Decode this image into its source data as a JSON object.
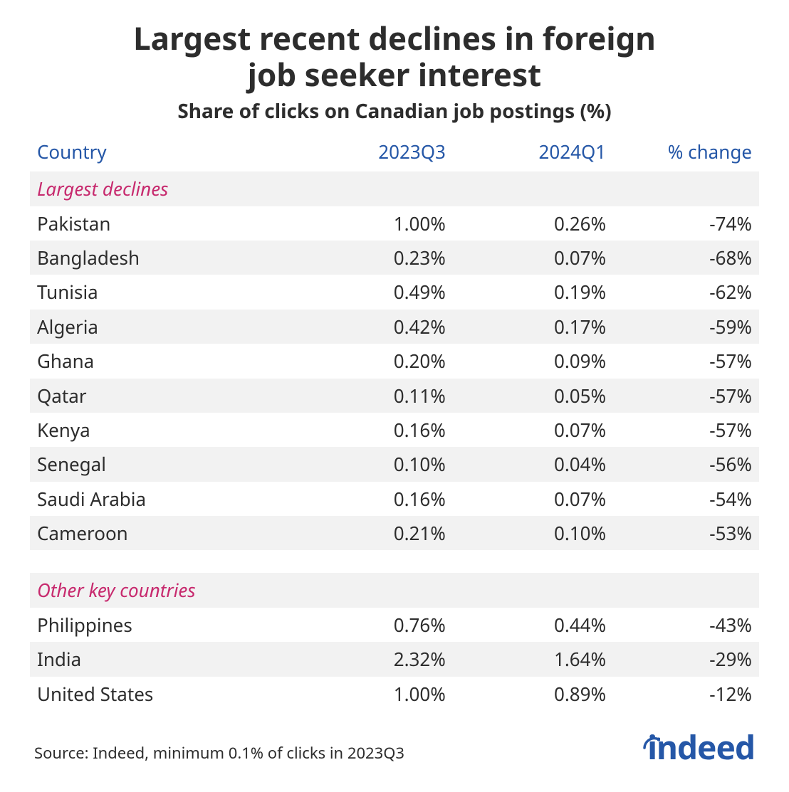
{
  "title_line1": "Largest recent declines in foreign",
  "title_line2": "job seeker interest",
  "subtitle": "Share of clicks on Canadian job postings (%)",
  "colors": {
    "text": "#2d2d2d",
    "header_blue": "#2557a7",
    "section_pink": "#c72a6e",
    "row_stripe": "#f2f2f2",
    "background": "#ffffff",
    "logo_blue": "#2557a7"
  },
  "typography": {
    "family": "Segoe UI / Noto Sans / Helvetica Neue / Arial",
    "title_fontsize": 44,
    "title_weight": 700,
    "subtitle_fontsize": 28,
    "subtitle_weight": 700,
    "header_fontsize": 26,
    "cell_fontsize": 26,
    "source_fontsize": 22
  },
  "table": {
    "type": "table",
    "columns": [
      "Country",
      "2023Q3",
      "2024Q1",
      "% change"
    ],
    "column_align": [
      "left",
      "right",
      "right",
      "right"
    ],
    "column_widths_pct": [
      36,
      22,
      22,
      20
    ],
    "sections": [
      {
        "label": "Largest declines",
        "rows": [
          {
            "country": "Pakistan",
            "q2023q3": "1.00%",
            "q2024q1": "0.26%",
            "change": "-74%"
          },
          {
            "country": "Bangladesh",
            "q2023q3": "0.23%",
            "q2024q1": "0.07%",
            "change": "-68%"
          },
          {
            "country": "Tunisia",
            "q2023q3": "0.49%",
            "q2024q1": "0.19%",
            "change": "-62%"
          },
          {
            "country": "Algeria",
            "q2023q3": "0.42%",
            "q2024q1": "0.17%",
            "change": "-59%"
          },
          {
            "country": "Ghana",
            "q2023q3": "0.20%",
            "q2024q1": "0.09%",
            "change": "-57%"
          },
          {
            "country": "Qatar",
            "q2023q3": "0.11%",
            "q2024q1": "0.05%",
            "change": "-57%"
          },
          {
            "country": "Kenya",
            "q2023q3": "0.16%",
            "q2024q1": "0.07%",
            "change": "-57%"
          },
          {
            "country": "Senegal",
            "q2023q3": "0.10%",
            "q2024q1": "0.04%",
            "change": "-56%"
          },
          {
            "country": "Saudi Arabia",
            "q2023q3": "0.16%",
            "q2024q1": "0.07%",
            "change": "-54%"
          },
          {
            "country": "Cameroon",
            "q2023q3": "0.21%",
            "q2024q1": "0.10%",
            "change": "-53%"
          }
        ]
      },
      {
        "label": "Other key countries",
        "rows": [
          {
            "country": "Philippines",
            "q2023q3": "0.76%",
            "q2024q1": "0.44%",
            "change": "-43%"
          },
          {
            "country": "India",
            "q2023q3": "2.32%",
            "q2024q1": "1.64%",
            "change": "-29%"
          },
          {
            "country": "United States",
            "q2023q3": "1.00%",
            "q2024q1": "0.89%",
            "change": "-12%"
          }
        ]
      }
    ]
  },
  "source": "Source: Indeed, minimum 0.1% of clicks in 2023Q3",
  "logo_text": "indeed"
}
